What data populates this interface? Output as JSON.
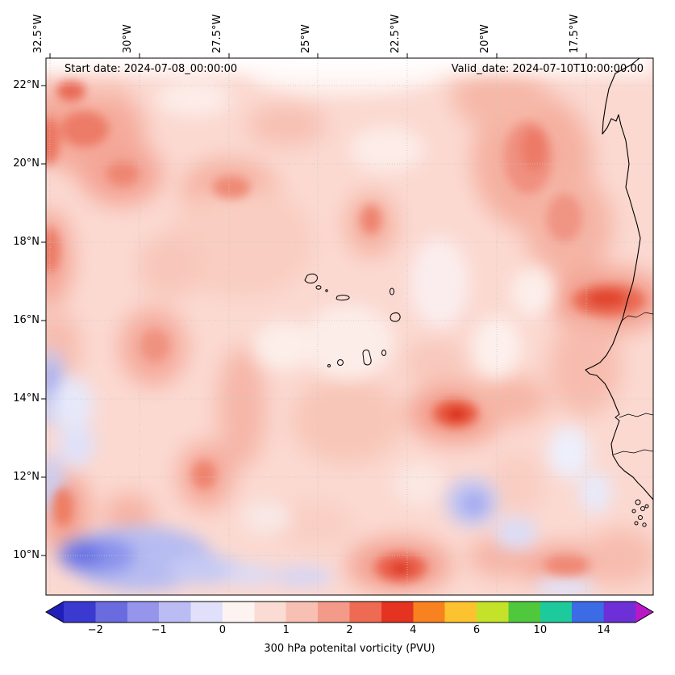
{
  "header": {
    "start_date": "Start date: 2024-07-08_00:00:00",
    "valid_date": "Valid_date: 2024-07-10T10:00:00.00"
  },
  "chart_data": {
    "type": "heatmap",
    "title": "300 hPa potential vorticity filled-contour map over the eastern tropical North Atlantic (Cape Verde archipelago and West African coast)",
    "annotations": {
      "start_date": "Start date: 2024-07-08_00:00:00",
      "valid_date": "Valid_date: 2024-07-10T10:00:00.00"
    },
    "x_axis": {
      "side": "top",
      "rotation_deg": 90,
      "tick_labels": [
        "32.5°W",
        "30°W",
        "27.5°W",
        "25°W",
        "22.5°W",
        "20°W",
        "17.5°W"
      ]
    },
    "y_axis": {
      "side": "left",
      "tick_labels": [
        "22°N",
        "20°N",
        "18°N",
        "16°N",
        "14°N",
        "12°N",
        "10°N"
      ]
    },
    "grid": "dotted light-gray at labeled ticks",
    "colorbar": {
      "label": "300 hPa potenital vorticity (PVU)",
      "orientation": "horizontal",
      "extend": "both",
      "tick_labels": [
        "−2",
        "−1",
        "0",
        "1",
        "2",
        "4",
        "6",
        "10",
        "14"
      ],
      "tick_values": [
        -2,
        -1,
        0,
        1,
        2,
        4,
        6,
        10,
        14
      ],
      "level_boundaries": [
        -2.5,
        -2,
        -1.5,
        -1,
        -0.5,
        0,
        0.5,
        1,
        1.5,
        2,
        3,
        4,
        5,
        6,
        8,
        10,
        12,
        14,
        16
      ],
      "segment_colors": [
        "#3a3ad0",
        "#6b6be0",
        "#9595ec",
        "#bcbcf4",
        "#e0e0fa",
        "#fdf4f2",
        "#fbdcd4",
        "#f8c0b2",
        "#f49a88",
        "#ee6a52",
        "#e53322",
        "#f8821f",
        "#fdc22f",
        "#c3e229",
        "#4fc83d",
        "#1ec99b",
        "#3b6ce6",
        "#6d2fd6"
      ],
      "under_color": "#2020b8",
      "over_color": "#b818c8"
    },
    "field_summary": {
      "units": "PVU",
      "typical_background": "0.5 to 1.5 PVU (light pink) over most of the domain",
      "maxima": [
        {
          "location": "13.4°N 21.5°W",
          "value_pvu": 2.5
        },
        {
          "location": "9.5°N 22.5°W",
          "value_pvu": 2.5
        },
        {
          "location": "16.5°N 17.5°W",
          "value_pvu": 2.5
        },
        {
          "location": "21°N 31.5°W",
          "value_pvu": 2
        },
        {
          "location": "20.5°N 19.5°W",
          "value_pvu": 2
        },
        {
          "location": "13.3°N 32.5°W",
          "value_pvu": 2
        }
      ],
      "minima": [
        {
          "location": "9.8°N 30.5°W",
          "value_pvu": -1.5
        },
        {
          "location": "11.5°N 21.3°W",
          "value_pvu": -0.8
        },
        {
          "location": "14.6°N 32.5°W",
          "value_pvu": -0.8
        },
        {
          "location": "9.3°N 26°W",
          "value_pvu": -0.5
        }
      ],
      "geography": [
        "West African coastline from Western Sahara through Mauritania, Senegal, Gambia to Guinea-Bissau",
        "Cape Verde islands near 15-17°N, 23-25°W"
      ]
    }
  }
}
